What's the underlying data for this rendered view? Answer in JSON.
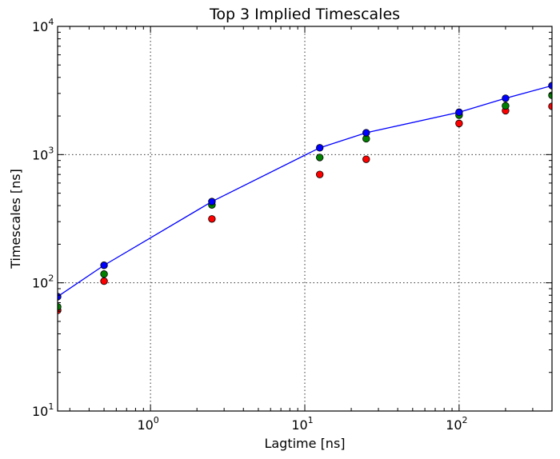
{
  "chart_data": {
    "type": "scatter",
    "title": "Top 3 Implied Timescales",
    "xlabel": "Lagtime [ns]",
    "ylabel": "Timescales [ns]",
    "xscale": "log",
    "yscale": "log",
    "xlim": [
      0.25,
      400
    ],
    "ylim": [
      10,
      10000
    ],
    "grid": true,
    "x_ticks": [
      {
        "value": 1,
        "base": "10",
        "exp": "0"
      },
      {
        "value": 10,
        "base": "10",
        "exp": "1"
      },
      {
        "value": 100,
        "base": "10",
        "exp": "2"
      }
    ],
    "y_ticks": [
      {
        "value": 10,
        "base": "10",
        "exp": "1"
      },
      {
        "value": 100,
        "base": "10",
        "exp": "2"
      },
      {
        "value": 1000,
        "base": "10",
        "exp": "3"
      },
      {
        "value": 10000,
        "base": "10",
        "exp": "4"
      }
    ],
    "x": [
      0.25,
      0.5,
      2.5,
      12.5,
      25,
      100,
      200,
      400
    ],
    "series": [
      {
        "color": "#0000ff",
        "line": true,
        "values": [
          78,
          137,
          430,
          1130,
          1480,
          2140,
          2750,
          3450
        ]
      },
      {
        "color": "#008000",
        "line": false,
        "values": [
          65,
          117,
          405,
          950,
          1330,
          2030,
          2400,
          2900
        ]
      },
      {
        "color": "#ff0000",
        "line": false,
        "values": [
          61,
          103,
          315,
          700,
          920,
          1750,
          2200,
          2380
        ]
      }
    ]
  }
}
